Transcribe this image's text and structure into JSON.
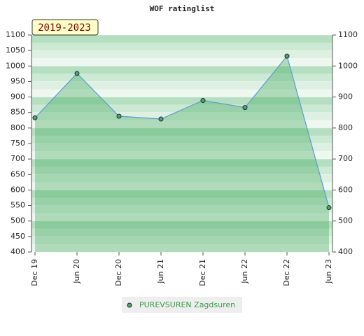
{
  "chart_data": {
    "type": "line",
    "title": "WOF ratinglist",
    "annotation": "2019-2023",
    "categories": [
      "Dec 19",
      "Jun 20",
      "Dec 20",
      "Jun 21",
      "Dec 21",
      "Jun 22",
      "Dec 22",
      "Jun 23"
    ],
    "series": [
      {
        "name": "PUREVSUREN Zagdsuren",
        "color": "#3a9a4a",
        "values": [
          833,
          976,
          838,
          829,
          889,
          866,
          1032,
          543
        ]
      }
    ],
    "ylim": [
      400,
      1100
    ],
    "yticks": [
      400,
      450,
      500,
      550,
      600,
      650,
      700,
      750,
      800,
      850,
      900,
      950,
      1000,
      1050,
      1100
    ],
    "y2lim": [
      400,
      1100
    ],
    "y2ticks": [
      400,
      500,
      600,
      700,
      800,
      900,
      1000,
      1100
    ],
    "grid": true
  }
}
